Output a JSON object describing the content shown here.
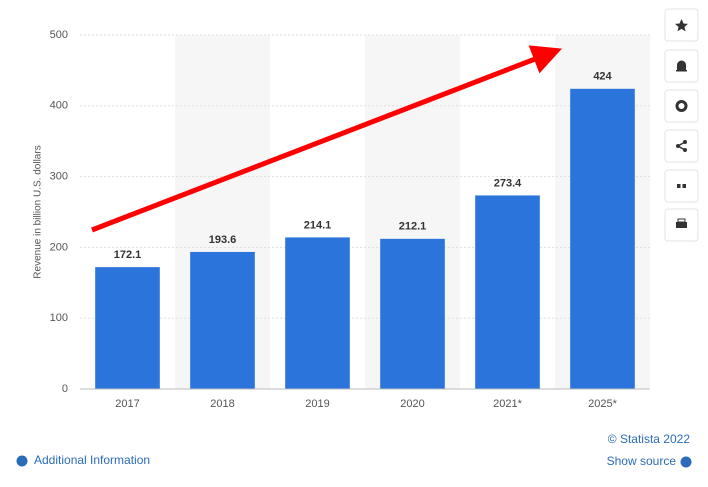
{
  "chart_data": {
    "type": "bar",
    "y_label": "Revenue in billion U.S. dollars",
    "categories": [
      "2017",
      "2018",
      "2019",
      "2020",
      "2021*",
      "2025*"
    ],
    "values": [
      172.1,
      193.6,
      214.1,
      212.1,
      273.4,
      424
    ],
    "color": "#2a74db",
    "ylim": [
      0,
      500
    ],
    "yticks": [
      0,
      100,
      200,
      300,
      400,
      500
    ],
    "grid": true,
    "source": "© Statista 2022",
    "links": [
      "Additional Information",
      "Show source"
    ]
  }
}
